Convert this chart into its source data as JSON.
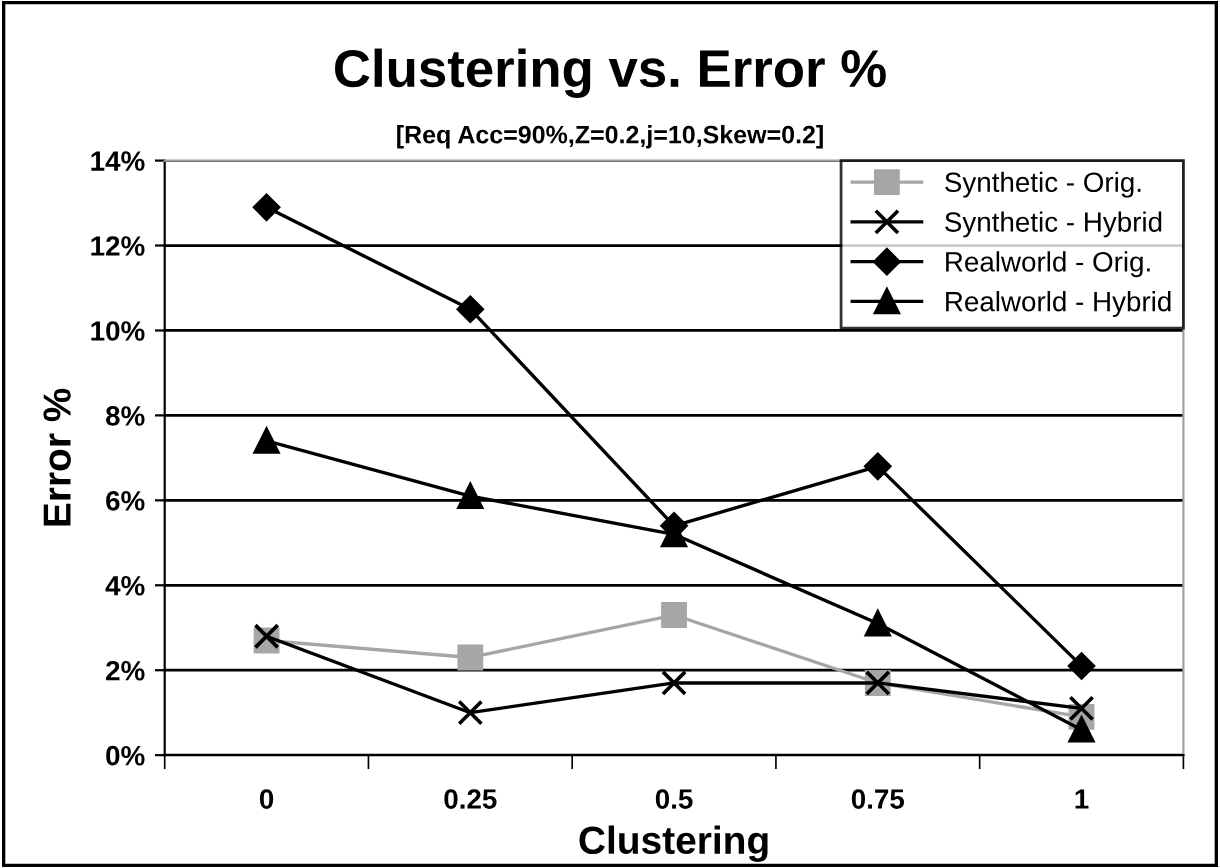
{
  "chart_data": {
    "type": "line",
    "title": "Clustering vs. Error %",
    "subtitle": "[Req Acc=90%,Z=0.2,j=10,Skew=0.2]",
    "xlabel": "Clustering",
    "ylabel": "Error %",
    "categories": [
      "0",
      "0.25",
      "0.5",
      "0.75",
      "1"
    ],
    "series": [
      {
        "name": "Synthetic - Orig.",
        "color": "#a6a6a6",
        "marker": "square",
        "values": [
          2.7,
          2.3,
          3.3,
          1.7,
          0.9
        ]
      },
      {
        "name": "Synthetic - Hybrid",
        "color": "#000000",
        "marker": "cross",
        "values": [
          2.8,
          1.0,
          1.7,
          1.7,
          1.1
        ]
      },
      {
        "name": "Realworld - Orig.",
        "color": "#000000",
        "marker": "diamond",
        "values": [
          12.9,
          10.5,
          5.4,
          6.8,
          2.1
        ]
      },
      {
        "name": "Realworld - Hybrid",
        "color": "#000000",
        "marker": "triangle",
        "values": [
          7.4,
          6.1,
          5.2,
          3.1,
          0.6
        ]
      }
    ],
    "ylim": [
      0,
      14
    ],
    "yticks": [
      {
        "value": 0,
        "label": "0%"
      },
      {
        "value": 2,
        "label": "2%"
      },
      {
        "value": 4,
        "label": "4%"
      },
      {
        "value": 6,
        "label": "6%"
      },
      {
        "value": 8,
        "label": "8%"
      },
      {
        "value": 10,
        "label": "10%"
      },
      {
        "value": 12,
        "label": "12%"
      },
      {
        "value": 14,
        "label": "14%"
      }
    ],
    "grid": "y",
    "legend": "top right",
    "line_style": "solid"
  }
}
